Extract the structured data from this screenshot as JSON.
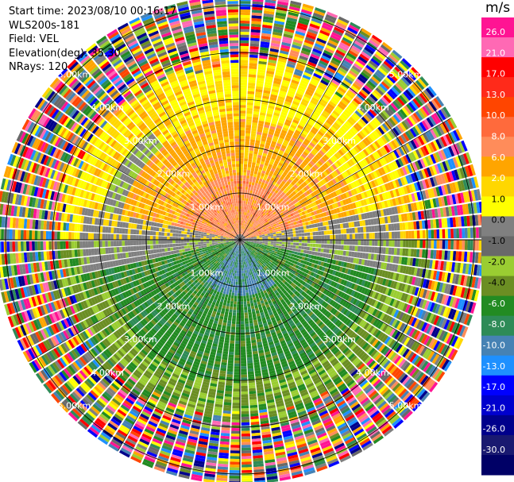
{
  "header": {
    "start_time": "Start time: 2023/08/10 00:16:17",
    "instrument": "WLS200s-181",
    "field": "Field: VEL",
    "elevation": "Elevation(deg): 35.30",
    "nrays": "NRays: 120"
  },
  "colorbar": {
    "unit": "m/s",
    "ticks": [
      "26.0",
      "21.0",
      "17.0",
      "13.0",
      "10.0",
      "8.0",
      "6.0",
      "2.0",
      "1.0",
      "0.0",
      "-1.0",
      "-2.0",
      "-4.0",
      "-6.0",
      "-8.0",
      "-10.0",
      "-13.0",
      "-17.0",
      "-21.0",
      "-26.0",
      "-30.0"
    ],
    "colors": [
      "#ff1493",
      "#ff69b4",
      "#ff0000",
      "#ff2a1a",
      "#ff4500",
      "#ff6a3c",
      "#ff8c5a",
      "#ffa500",
      "#ffd700",
      "#ffff00",
      "#808080",
      "#696969",
      "#9acd32",
      "#6b8e23",
      "#228b22",
      "#2e8b57",
      "#4682b4",
      "#1e90ff",
      "#0000ff",
      "#0000cd",
      "#00008b",
      "#191970",
      "#000066"
    ]
  },
  "chart_data": {
    "type": "ppi",
    "field": "VEL",
    "units": "m/s",
    "nrays": 120,
    "elevation_deg": 35.3,
    "range_rings_km": [
      "1.00km",
      "2.00km",
      "3.00km",
      "4.00km",
      "5.00km"
    ],
    "range_ring_values": [
      1,
      2,
      3,
      4,
      5
    ],
    "max_range_km": 5.2,
    "spoke_angles_deg": [
      0,
      30,
      60,
      90,
      120,
      150,
      180,
      210,
      240,
      270,
      300,
      330
    ],
    "color_levels": [
      26.0,
      21.0,
      17.0,
      13.0,
      10.0,
      8.0,
      6.0,
      2.0,
      1.0,
      0.0,
      -1.0,
      -2.0,
      -4.0,
      -6.0,
      -8.0,
      -10.0,
      -13.0,
      -17.0,
      -21.0,
      -26.0,
      -30.0
    ],
    "velocity_pattern": {
      "north_sector_inner": "6.0 to 8.0 (orange)",
      "north_sector_mid": "2.0 to 6.0 (yellow/orange)",
      "south_sector_inner": "-6.0 to -10.0 (green/blue)",
      "south_sector_mid": "-2.0 to -6.0 (green)",
      "east_west_near_zero": "-1.0 to 1.0 (grey)",
      "outer_ranges": "noise (mixed colors)"
    }
  }
}
